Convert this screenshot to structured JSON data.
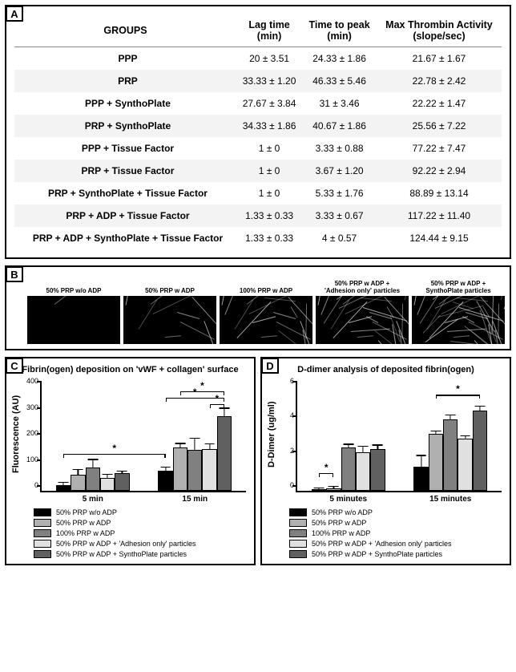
{
  "panelA": {
    "label": "A",
    "table": {
      "columns": [
        "GROUPS",
        "Lag time\n(min)",
        "Time to peak\n(min)",
        "Max Thrombin Activity\n(slope/sec)"
      ],
      "rows": [
        {
          "group": "PPP",
          "lag": "20 ± 3.51",
          "peak": "24.33 ± 1.86",
          "max": "21.67 ± 1.67",
          "stripe": false
        },
        {
          "group": "PRP",
          "lag": "33.33 ± 1.20",
          "peak": "46.33 ± 5.46",
          "max": "22.78 ± 2.42",
          "stripe": true
        },
        {
          "group": "PPP + SynthoPlate",
          "lag": "27.67 ± 3.84",
          "peak": "31 ± 3.46",
          "max": "22.22 ± 1.47",
          "stripe": false
        },
        {
          "group": "PRP + SynthoPlate",
          "lag": "34.33 ± 1.86",
          "peak": "40.67 ± 1.86",
          "max": "25.56 ± 7.22",
          "stripe": true
        },
        {
          "group": "PPP + Tissue Factor",
          "lag": "1 ± 0",
          "peak": "3.33 ± 0.88",
          "max": "77.22 ± 7.47",
          "stripe": false
        },
        {
          "group": "PRP + Tissue Factor",
          "lag": "1 ± 0",
          "peak": "3.67 ± 1.20",
          "max": "92.22 ± 2.94",
          "stripe": true
        },
        {
          "group": "PRP + SynthoPlate + Tissue Factor",
          "lag": "1 ± 0",
          "peak": "5.33 ± 1.76",
          "max": "88.89 ± 13.14",
          "stripe": false
        },
        {
          "group": "PRP + ADP + Tissue Factor",
          "lag": "1.33 ± 0.33",
          "peak": "3.33 ± 0.67",
          "max": "117.22 ± 11.40",
          "stripe": true
        },
        {
          "group": "PRP + ADP + SynthoPlate + Tissue Factor",
          "lag": "1.33 ± 0.33",
          "peak": "4 ± 0.57",
          "max": "124.44 ± 9.15",
          "stripe": false
        }
      ]
    }
  },
  "panelB": {
    "label": "B",
    "micrographs": [
      {
        "caption": "50% PRP w/o ADP",
        "density": 0.05
      },
      {
        "caption": "50% PRP w ADP",
        "density": 0.25
      },
      {
        "caption": "100% PRP w ADP",
        "density": 0.45
      },
      {
        "caption": "50% PRP w ADP +\n'Adhesion only' particles",
        "density": 0.7
      },
      {
        "caption": "50% PRP w ADP +\nSynthoPlate particles",
        "density": 0.95
      }
    ]
  },
  "series_colors": [
    "#000000",
    "#b0b0b0",
    "#808080",
    "#e0e0e0",
    "#606060"
  ],
  "series_labels": [
    "50% PRP w/o ADP",
    "50% PRP w ADP",
    "100% PRP w ADP",
    "50% PRP w ADP + 'Adhesion only' particles",
    "50% PRP w ADP + SynthoPlate particles"
  ],
  "panelC": {
    "label": "C",
    "title": "Fibrin(ogen) deposition on 'vWF + collagen' surface",
    "ylabel": "Fluorescence (AU)",
    "ymax": 400,
    "yticks": [
      0,
      100,
      200,
      300,
      400
    ],
    "categories": [
      "5 min",
      "15 min"
    ],
    "data": [
      {
        "cat": "5 min",
        "vals": [
          22,
          62,
          88,
          50,
          68
        ],
        "errs": [
          8,
          18,
          30,
          12,
          6
        ]
      },
      {
        "cat": "15 min",
        "vals": [
          78,
          165,
          158,
          160,
          285
        ],
        "errs": [
          12,
          15,
          42,
          18,
          30
        ]
      }
    ],
    "sig_bars": [
      {
        "from": [
          0,
          0
        ],
        "to": [
          1,
          0
        ],
        "y": 120
      },
      {
        "from": [
          1,
          0
        ],
        "to": [
          1,
          4
        ],
        "y": 335
      },
      {
        "from": [
          1,
          1
        ],
        "to": [
          1,
          4
        ],
        "y": 360
      },
      {
        "from": [
          1,
          3
        ],
        "to": [
          1,
          4
        ],
        "y": 310
      }
    ]
  },
  "panelD": {
    "label": "D",
    "title": "D-dimer analysis of deposited fibrin(ogen)",
    "ylabel": "D-Dimer (ug/ml)",
    "ymax": 6,
    "yticks": [
      0,
      2,
      4,
      6
    ],
    "categories": [
      "5 minutes",
      "15 minutes"
    ],
    "data": [
      {
        "cat": "5 minutes",
        "vals": [
          0.1,
          0.15,
          2.5,
          2.2,
          2.4
        ],
        "errs": [
          0.05,
          0.08,
          0.15,
          0.35,
          0.2
        ]
      },
      {
        "cat": "15 minutes",
        "vals": [
          1.4,
          3.3,
          4.1,
          3.0,
          4.6
        ],
        "errs": [
          0.6,
          0.1,
          0.25,
          0.15,
          0.25
        ]
      }
    ],
    "sig_bars": [
      {
        "from": [
          0,
          0
        ],
        "to": [
          0,
          1
        ],
        "y": 0.7
      },
      {
        "from": [
          1,
          1
        ],
        "to": [
          1,
          4
        ],
        "y": 5.2
      }
    ]
  }
}
